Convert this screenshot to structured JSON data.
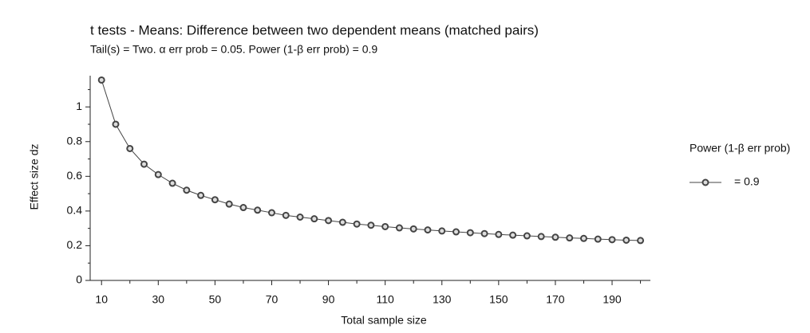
{
  "chart_data": {
    "type": "line",
    "title": "t tests - Means: Difference between two dependent means (matched pairs)",
    "subtitle": "Tail(s) = Two. α err prob = 0.05. Power (1-β err prob) = 0.9",
    "x_label": "Total sample size",
    "y_label": "Effect size dz",
    "legend_title": "Power (1-β err prob)",
    "x": [
      10,
      15,
      20,
      25,
      30,
      35,
      40,
      45,
      50,
      55,
      60,
      65,
      70,
      75,
      80,
      85,
      90,
      95,
      100,
      105,
      110,
      115,
      120,
      125,
      130,
      135,
      140,
      145,
      150,
      155,
      160,
      165,
      170,
      175,
      180,
      185,
      190,
      195,
      200
    ],
    "series": [
      {
        "name": "= 0.9",
        "color": "#444444",
        "values": [
          1.155,
          0.9,
          0.76,
          0.67,
          0.61,
          0.56,
          0.52,
          0.49,
          0.465,
          0.44,
          0.42,
          0.405,
          0.39,
          0.375,
          0.365,
          0.355,
          0.345,
          0.335,
          0.325,
          0.318,
          0.31,
          0.303,
          0.297,
          0.291,
          0.285,
          0.28,
          0.275,
          0.27,
          0.265,
          0.261,
          0.257,
          0.253,
          0.249,
          0.245,
          0.242,
          0.238,
          0.235,
          0.232,
          0.23
        ]
      }
    ],
    "xlim": [
      6,
      203.5
    ],
    "xticks": [
      10,
      30,
      50,
      70,
      90,
      110,
      130,
      150,
      170,
      190
    ],
    "xticks_minor": [
      20,
      40,
      60,
      80,
      100,
      120,
      140,
      160,
      180,
      200
    ],
    "ylim": [
      0,
      1.18
    ],
    "yticks": [
      0,
      0.2,
      0.4,
      0.6,
      0.8,
      1
    ],
    "yticks_minor": [
      0.1,
      0.3,
      0.5,
      0.7,
      0.9,
      1.1
    ],
    "legend_position": "right"
  }
}
